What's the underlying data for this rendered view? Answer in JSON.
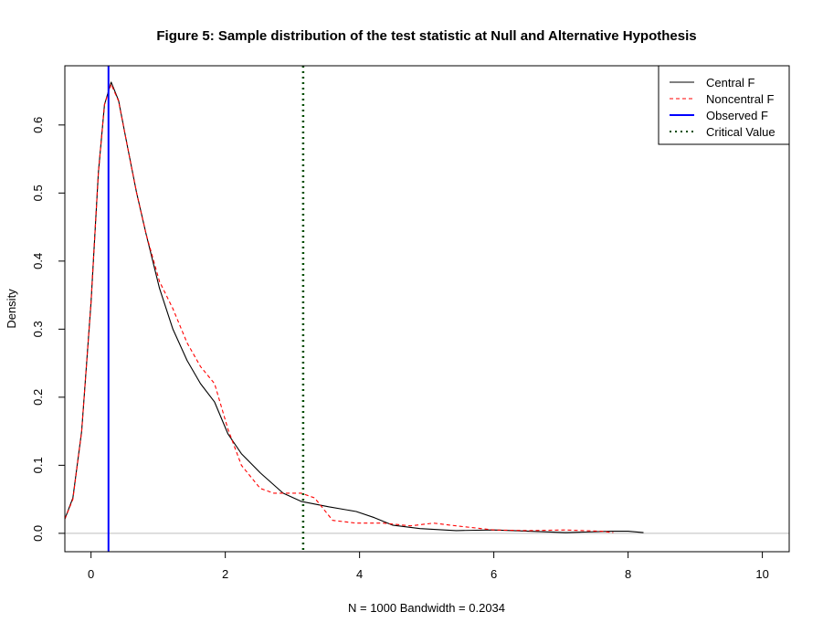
{
  "chart_data": {
    "type": "line",
    "title": "Figure 5: Sample distribution of the test statistic at Null and Alternative Hypothesis",
    "xlabel": "N = 1000   Bandwidth = 0.2034",
    "ylabel": "Density",
    "xlim": [
      -0.39,
      10.4
    ],
    "ylim": [
      -0.027,
      0.687
    ],
    "xticks": [
      0,
      2,
      4,
      6,
      8,
      10
    ],
    "xtick_labels": [
      "0",
      "2",
      "4",
      "6",
      "8",
      "10"
    ],
    "yticks": [
      0.0,
      0.1,
      0.2,
      0.3,
      0.4,
      0.5,
      0.6
    ],
    "ytick_labels": [
      "0.0",
      "0.1",
      "0.2",
      "0.3",
      "0.4",
      "0.5",
      "0.6"
    ],
    "grid": false,
    "legend_position": "top-right",
    "series": [
      {
        "name": "Central F",
        "color": "#000000",
        "style": "solid",
        "x": [
          -0.39,
          -0.27,
          -0.14,
          0,
          0.11,
          0.2,
          0.3,
          0.41,
          0.54,
          0.68,
          0.82,
          1.02,
          1.22,
          1.43,
          1.63,
          1.84,
          2.04,
          2.24,
          2.52,
          2.86,
          3.13,
          3.54,
          3.95,
          4.22,
          4.49,
          4.9,
          5.44,
          5.99,
          6.53,
          7.07,
          7.76,
          8.0,
          8.23
        ],
        "y": [
          0.021,
          0.052,
          0.15,
          0.34,
          0.53,
          0.63,
          0.663,
          0.636,
          0.57,
          0.5,
          0.44,
          0.36,
          0.3,
          0.254,
          0.22,
          0.193,
          0.146,
          0.117,
          0.089,
          0.059,
          0.047,
          0.039,
          0.032,
          0.023,
          0.012,
          0.007,
          0.004,
          0.005,
          0.003,
          0.001,
          0.003,
          0.003,
          0.001
        ]
      },
      {
        "name": "Noncentral F",
        "color": "#ff0000",
        "style": "dashed",
        "x": [
          -0.39,
          -0.27,
          -0.14,
          0,
          0.11,
          0.2,
          0.3,
          0.41,
          0.54,
          0.68,
          0.82,
          1.02,
          1.22,
          1.43,
          1.63,
          1.84,
          2.04,
          2.24,
          2.52,
          2.72,
          3.13,
          3.33,
          3.6,
          3.95,
          4.35,
          4.76,
          5.1,
          5.44,
          6.0,
          6.53,
          7.07,
          7.6,
          7.78
        ],
        "y": [
          0.021,
          0.05,
          0.15,
          0.34,
          0.53,
          0.63,
          0.66,
          0.635,
          0.57,
          0.5,
          0.44,
          0.37,
          0.33,
          0.28,
          0.245,
          0.22,
          0.153,
          0.1,
          0.066,
          0.059,
          0.059,
          0.052,
          0.019,
          0.015,
          0.015,
          0.011,
          0.015,
          0.011,
          0.005,
          0.004,
          0.005,
          0.003,
          0.001
        ]
      }
    ],
    "vlines": [
      {
        "name": "Observed F",
        "x": 0.26,
        "color": "#0000ff",
        "style": "solid"
      },
      {
        "name": "Critical Value",
        "x": 3.16,
        "color": "#004d00",
        "style": "dotted"
      }
    ],
    "hline": {
      "y": 0,
      "color": "#bebebe"
    }
  }
}
